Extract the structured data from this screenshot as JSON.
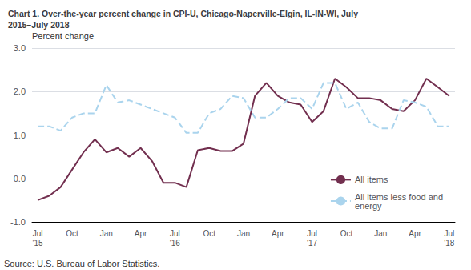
{
  "chart_data": {
    "type": "line",
    "title": "Chart 1. Over-the-year percent change in CPI-U, Chicago-Naperville-Elgin, IL-IN-WI, July\n2015–July 2018",
    "ylabel": "Percent change",
    "annotations": [
      "Source: U.S. Bureau of Labor Statistics."
    ],
    "categories": [
      "Jul\n'15",
      null,
      null,
      "Oct",
      null,
      null,
      "Jan",
      null,
      null,
      "Apr",
      null,
      null,
      "Jul\n'16",
      null,
      null,
      "Oct",
      null,
      null,
      "Jan",
      null,
      null,
      "Apr",
      null,
      null,
      "Jul\n'17",
      null,
      null,
      "Oct",
      null,
      null,
      "Jan",
      null,
      null,
      "Apr",
      null,
      null,
      "Jul\n'18"
    ],
    "series": [
      {
        "name": "All items",
        "color": "#722f4f",
        "line_style": "solid",
        "values": [
          -0.5,
          -0.4,
          -0.2,
          0.2,
          0.6,
          0.9,
          0.6,
          0.7,
          0.5,
          0.7,
          0.4,
          -0.1,
          -0.1,
          -0.2,
          0.65,
          0.7,
          0.63,
          0.63,
          0.8,
          1.9,
          2.2,
          1.9,
          1.75,
          1.7,
          1.3,
          1.55,
          2.3,
          2.1,
          1.85,
          1.85,
          1.8,
          1.6,
          1.55,
          1.8,
          2.3,
          2.1,
          1.9
        ]
      },
      {
        "name": "All items less food and\nenergy",
        "color": "#aad4ed",
        "line_style": "dashed",
        "values": [
          1.2,
          1.2,
          1.1,
          1.4,
          1.5,
          1.5,
          2.15,
          1.75,
          1.8,
          1.7,
          1.6,
          1.5,
          1.4,
          1.05,
          1.05,
          1.5,
          1.6,
          1.9,
          1.85,
          1.4,
          1.4,
          1.6,
          1.85,
          1.85,
          1.6,
          2.2,
          2.2,
          1.6,
          1.75,
          1.3,
          1.15,
          1.15,
          1.8,
          1.75,
          1.65,
          1.2,
          1.2
        ]
      }
    ],
    "ylim": [
      -1.0,
      3.0
    ],
    "yticks": [
      {
        "value": -1.0,
        "label": "-1.0"
      },
      {
        "value": 0.0,
        "label": "0.0"
      },
      {
        "value": 1.0,
        "label": "1.0"
      },
      {
        "value": 2.0,
        "label": "2.0"
      },
      {
        "value": 3.0,
        "label": "3.0"
      }
    ],
    "grid": true,
    "legend": "lower right"
  }
}
